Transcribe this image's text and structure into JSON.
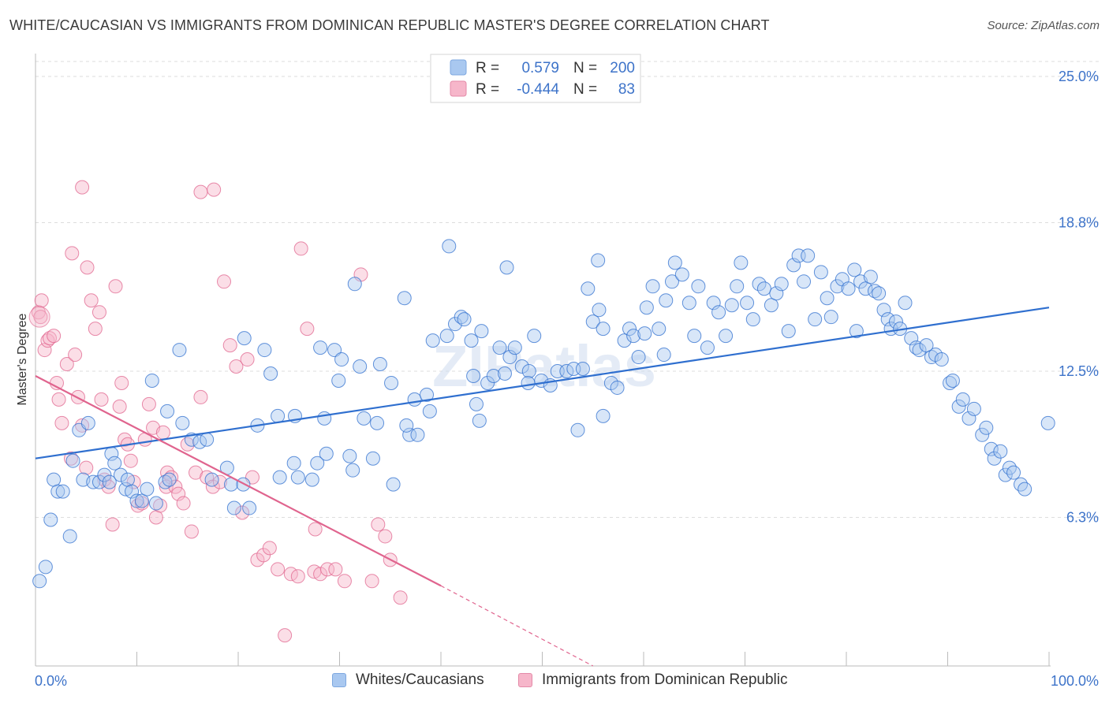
{
  "title": "WHITE/CAUCASIAN VS IMMIGRANTS FROM DOMINICAN REPUBLIC MASTER'S DEGREE CORRELATION CHART",
  "source": "Source: ZipAtlas.com",
  "watermark": "ZIPatlas",
  "colors": {
    "blue": "#2f6fcf",
    "blue_fill": "#a9c8f0",
    "pink": "#e0648e",
    "pink_fill": "#f6b6ca",
    "axis_label": "#3d73c9",
    "grid": "#dddddd"
  },
  "legend_top": {
    "rows": [
      {
        "r_label": "R =",
        "r_value": "0.579",
        "n_label": "N =",
        "n_value": "200"
      },
      {
        "r_label": "R =",
        "r_value": "-0.444",
        "n_label": "N =",
        "n_value": "83"
      }
    ]
  },
  "legend_bottom": {
    "items": [
      {
        "label": "Whites/Caucasians"
      },
      {
        "label": "Immigrants from Dominican Republic"
      }
    ]
  },
  "chart_data": {
    "type": "scatter",
    "xlabel": "",
    "ylabel": "Master's Degree",
    "xlim": [
      0,
      100
    ],
    "ylim": [
      0,
      25.0
    ],
    "x_tick_labels": [
      "0.0%",
      "100.0%"
    ],
    "y_ticks": [
      6.3,
      12.5,
      18.8,
      25.0
    ],
    "y_tick_labels": [
      "6.3%",
      "12.5%",
      "18.8%",
      "25.0%"
    ],
    "grid": true,
    "series": [
      {
        "name": "Whites/Caucasians",
        "r": 0.579,
        "n": 200,
        "trend": {
          "x": [
            0,
            100
          ],
          "y": [
            8.8,
            15.2
          ]
        },
        "points": [
          [
            0.4,
            3.6
          ],
          [
            1.0,
            4.2
          ],
          [
            1.5,
            6.2
          ],
          [
            1.8,
            7.9
          ],
          [
            2.2,
            7.4
          ],
          [
            2.7,
            7.4
          ],
          [
            3.4,
            5.5
          ],
          [
            3.7,
            8.7
          ],
          [
            4.3,
            10.0
          ],
          [
            4.7,
            7.9
          ],
          [
            5.2,
            10.3
          ],
          [
            5.7,
            7.8
          ],
          [
            6.3,
            7.8
          ],
          [
            6.8,
            8.1
          ],
          [
            7.3,
            7.8
          ],
          [
            7.5,
            9.0
          ],
          [
            7.8,
            8.6
          ],
          [
            8.4,
            8.1
          ],
          [
            8.9,
            7.5
          ],
          [
            9.1,
            7.9
          ],
          [
            9.5,
            7.4
          ],
          [
            10.0,
            7.0
          ],
          [
            10.5,
            7.0
          ],
          [
            11.0,
            7.5
          ],
          [
            11.5,
            12.1
          ],
          [
            11.9,
            6.9
          ],
          [
            12.8,
            7.8
          ],
          [
            13.2,
            7.9
          ],
          [
            13.0,
            10.8
          ],
          [
            14.2,
            13.4
          ],
          [
            14.5,
            10.3
          ],
          [
            15.4,
            9.6
          ],
          [
            16.2,
            9.5
          ],
          [
            16.9,
            9.6
          ],
          [
            17.4,
            7.9
          ],
          [
            18.9,
            8.4
          ],
          [
            19.3,
            7.7
          ],
          [
            20.5,
            7.7
          ],
          [
            19.6,
            6.7
          ],
          [
            21.1,
            6.7
          ],
          [
            21.9,
            10.2
          ],
          [
            20.6,
            13.9
          ],
          [
            22.6,
            13.4
          ],
          [
            23.2,
            12.4
          ],
          [
            23.9,
            10.6
          ],
          [
            24.1,
            8.0
          ],
          [
            25.5,
            8.6
          ],
          [
            25.9,
            8.0
          ],
          [
            25.6,
            10.6
          ],
          [
            27.8,
            8.6
          ],
          [
            27.3,
            7.9
          ],
          [
            28.7,
            9.0
          ],
          [
            28.5,
            10.5
          ],
          [
            28.1,
            13.5
          ],
          [
            29.5,
            13.4
          ],
          [
            30.2,
            13.0
          ],
          [
            29.9,
            12.1
          ],
          [
            31.0,
            8.9
          ],
          [
            31.3,
            8.3
          ],
          [
            31.5,
            16.2
          ],
          [
            32.0,
            12.7
          ],
          [
            32.4,
            10.5
          ],
          [
            33.3,
            8.8
          ],
          [
            33.7,
            10.3
          ],
          [
            34.0,
            12.8
          ],
          [
            35.1,
            12.0
          ],
          [
            35.3,
            7.7
          ],
          [
            36.4,
            15.6
          ],
          [
            36.9,
            9.8
          ],
          [
            37.4,
            11.3
          ],
          [
            36.6,
            10.2
          ],
          [
            37.7,
            9.8
          ],
          [
            38.6,
            11.5
          ],
          [
            38.9,
            10.8
          ],
          [
            39.2,
            13.8
          ],
          [
            40.6,
            14.0
          ],
          [
            40.8,
            17.8
          ],
          [
            41.4,
            14.5
          ],
          [
            42.0,
            14.8
          ],
          [
            42.3,
            14.7
          ],
          [
            43.2,
            12.3
          ],
          [
            43.5,
            11.1
          ],
          [
            43.8,
            10.4
          ],
          [
            44.6,
            12.0
          ],
          [
            45.2,
            12.3
          ],
          [
            45.8,
            13.5
          ],
          [
            46.3,
            12.4
          ],
          [
            46.8,
            13.1
          ],
          [
            46.5,
            16.9
          ],
          [
            47.3,
            13.5
          ],
          [
            48.0,
            12.7
          ],
          [
            48.7,
            12.5
          ],
          [
            48.6,
            12.0
          ],
          [
            49.2,
            14.0
          ],
          [
            49.9,
            12.1
          ],
          [
            50.8,
            11.9
          ],
          [
            51.5,
            12.5
          ],
          [
            52.4,
            12.5
          ],
          [
            53.1,
            12.6
          ],
          [
            53.5,
            10.0
          ],
          [
            54.0,
            12.6
          ],
          [
            54.5,
            16.0
          ],
          [
            55.0,
            14.6
          ],
          [
            55.6,
            15.1
          ],
          [
            56.0,
            14.3
          ],
          [
            55.5,
            17.2
          ],
          [
            56.8,
            12.0
          ],
          [
            57.4,
            11.8
          ],
          [
            58.1,
            13.8
          ],
          [
            58.6,
            14.3
          ],
          [
            59.0,
            14.0
          ],
          [
            59.5,
            13.1
          ],
          [
            60.3,
            15.2
          ],
          [
            60.9,
            16.1
          ],
          [
            60.1,
            14.1
          ],
          [
            61.5,
            14.3
          ],
          [
            62.2,
            15.5
          ],
          [
            62.8,
            16.3
          ],
          [
            63.1,
            17.1
          ],
          [
            63.8,
            16.6
          ],
          [
            64.5,
            15.4
          ],
          [
            65.0,
            14.0
          ],
          [
            65.4,
            16.1
          ],
          [
            66.3,
            13.5
          ],
          [
            66.9,
            15.4
          ],
          [
            67.4,
            15.0
          ],
          [
            68.1,
            14.0
          ],
          [
            68.7,
            15.3
          ],
          [
            69.2,
            16.1
          ],
          [
            69.6,
            17.1
          ],
          [
            70.2,
            15.4
          ],
          [
            70.8,
            14.7
          ],
          [
            71.4,
            16.2
          ],
          [
            71.9,
            16.0
          ],
          [
            72.6,
            15.3
          ],
          [
            73.1,
            15.8
          ],
          [
            73.6,
            16.2
          ],
          [
            74.3,
            14.2
          ],
          [
            74.8,
            17.0
          ],
          [
            75.3,
            17.4
          ],
          [
            75.8,
            16.3
          ],
          [
            76.2,
            17.4
          ],
          [
            76.9,
            14.7
          ],
          [
            77.5,
            16.7
          ],
          [
            78.1,
            15.6
          ],
          [
            78.5,
            14.8
          ],
          [
            79.1,
            16.1
          ],
          [
            79.6,
            16.4
          ],
          [
            80.2,
            16.0
          ],
          [
            80.8,
            16.8
          ],
          [
            81.4,
            16.3
          ],
          [
            81.9,
            16.0
          ],
          [
            82.4,
            16.5
          ],
          [
            81.0,
            14.2
          ],
          [
            82.8,
            15.9
          ],
          [
            83.2,
            15.8
          ],
          [
            83.7,
            15.1
          ],
          [
            84.1,
            14.7
          ],
          [
            84.4,
            14.3
          ],
          [
            84.9,
            14.6
          ],
          [
            85.3,
            14.3
          ],
          [
            85.8,
            15.4
          ],
          [
            86.4,
            13.9
          ],
          [
            86.9,
            13.5
          ],
          [
            87.2,
            13.4
          ],
          [
            87.9,
            13.6
          ],
          [
            88.4,
            13.1
          ],
          [
            88.8,
            13.2
          ],
          [
            89.4,
            13.0
          ],
          [
            90.2,
            12.0
          ],
          [
            90.5,
            12.1
          ],
          [
            91.1,
            11.0
          ],
          [
            91.5,
            11.3
          ],
          [
            92.1,
            10.5
          ],
          [
            92.6,
            10.9
          ],
          [
            93.4,
            9.8
          ],
          [
            93.8,
            10.1
          ],
          [
            94.3,
            9.2
          ],
          [
            94.6,
            8.8
          ],
          [
            95.2,
            9.1
          ],
          [
            95.7,
            8.1
          ],
          [
            96.1,
            8.4
          ],
          [
            96.5,
            8.2
          ],
          [
            97.2,
            7.7
          ],
          [
            97.6,
            7.5
          ],
          [
            99.9,
            10.3
          ],
          [
            43.0,
            13.8
          ],
          [
            44.0,
            14.2
          ],
          [
            56.0,
            10.6
          ],
          [
            62.0,
            13.2
          ]
        ]
      },
      {
        "name": "Immigrants from Dominican Republic",
        "r": -0.444,
        "n": 83,
        "trend": {
          "x": [
            0,
            40
          ],
          "y": [
            12.3,
            3.4
          ]
        },
        "trend_dashed": {
          "x": [
            40,
            55
          ],
          "y": [
            3.4,
            0.0
          ]
        },
        "points": [
          [
            0.3,
            15.0
          ],
          [
            0.5,
            14.8
          ],
          [
            0.6,
            15.5
          ],
          [
            0.9,
            13.4
          ],
          [
            1.2,
            13.8
          ],
          [
            1.4,
            13.9
          ],
          [
            1.8,
            14.0
          ],
          [
            2.1,
            12.0
          ],
          [
            2.3,
            11.3
          ],
          [
            2.6,
            10.3
          ],
          [
            3.1,
            12.8
          ],
          [
            3.5,
            8.8
          ],
          [
            3.9,
            13.2
          ],
          [
            4.2,
            11.4
          ],
          [
            4.6,
            10.2
          ],
          [
            5.0,
            8.4
          ],
          [
            3.6,
            17.5
          ],
          [
            4.6,
            20.3
          ],
          [
            5.1,
            16.9
          ],
          [
            5.5,
            15.5
          ],
          [
            5.9,
            14.3
          ],
          [
            6.3,
            15.0
          ],
          [
            6.5,
            11.3
          ],
          [
            6.8,
            7.9
          ],
          [
            7.2,
            7.6
          ],
          [
            7.6,
            6.0
          ],
          [
            7.9,
            16.1
          ],
          [
            8.3,
            11.0
          ],
          [
            8.5,
            12.0
          ],
          [
            8.8,
            9.6
          ],
          [
            9.1,
            9.4
          ],
          [
            9.4,
            8.7
          ],
          [
            9.7,
            7.8
          ],
          [
            10.1,
            6.8
          ],
          [
            10.5,
            6.9
          ],
          [
            10.8,
            9.6
          ],
          [
            11.2,
            11.1
          ],
          [
            11.6,
            10.1
          ],
          [
            11.9,
            6.3
          ],
          [
            12.3,
            6.8
          ],
          [
            12.6,
            9.9
          ],
          [
            13.0,
            8.2
          ],
          [
            13.4,
            8.0
          ],
          [
            12.9,
            7.6
          ],
          [
            13.8,
            7.6
          ],
          [
            14.1,
            7.3
          ],
          [
            14.6,
            6.9
          ],
          [
            15.0,
            9.4
          ],
          [
            15.4,
            5.7
          ],
          [
            15.8,
            8.2
          ],
          [
            16.3,
            11.4
          ],
          [
            16.9,
            8.0
          ],
          [
            17.5,
            7.6
          ],
          [
            18.2,
            7.8
          ],
          [
            16.3,
            20.1
          ],
          [
            17.6,
            20.2
          ],
          [
            18.6,
            16.3
          ],
          [
            19.2,
            13.6
          ],
          [
            19.8,
            12.7
          ],
          [
            20.4,
            6.5
          ],
          [
            20.9,
            13.0
          ],
          [
            21.4,
            8.0
          ],
          [
            21.9,
            4.5
          ],
          [
            22.5,
            4.7
          ],
          [
            23.1,
            5.0
          ],
          [
            23.9,
            4.1
          ],
          [
            24.6,
            1.3
          ],
          [
            25.2,
            3.9
          ],
          [
            25.9,
            3.8
          ],
          [
            26.8,
            14.3
          ],
          [
            27.5,
            4.0
          ],
          [
            28.1,
            3.9
          ],
          [
            28.8,
            4.1
          ],
          [
            29.6,
            4.1
          ],
          [
            30.5,
            3.6
          ],
          [
            32.1,
            16.6
          ],
          [
            33.2,
            3.6
          ],
          [
            33.8,
            6.0
          ],
          [
            34.5,
            5.5
          ],
          [
            35.0,
            4.5
          ],
          [
            36.0,
            2.9
          ],
          [
            26.2,
            17.7
          ],
          [
            27.6,
            5.8
          ]
        ]
      }
    ]
  }
}
